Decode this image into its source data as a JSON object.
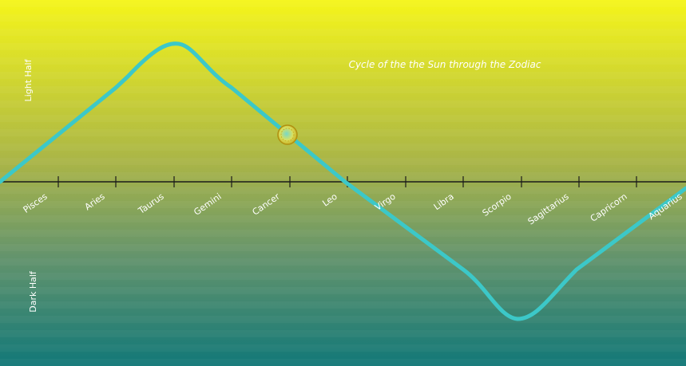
{
  "title": "Cycle of the the Sun through the Zodiac",
  "labels": {
    "light_half": "Light Half",
    "dark_half": "Dark Half"
  },
  "zodiac_signs": [
    "Pisces",
    "Aries",
    "Taurus",
    "Gemini",
    "Cancer",
    "Leo",
    "Virgo",
    "Libra",
    "Scorpio",
    "Sagittarius",
    "Capricorn",
    "Aquarius"
  ],
  "colors": {
    "gradient_top": "#f5f51a",
    "gradient_bottom": "#127878",
    "curve": "#3cc8c8",
    "axis": "#1a1a1a",
    "label_text": "#ffffff",
    "sun_fill": "#f0e030",
    "sun_center": "#78d8c8"
  },
  "sun_marker": {
    "sign": "Cancer",
    "icon": "sun-icon"
  }
}
